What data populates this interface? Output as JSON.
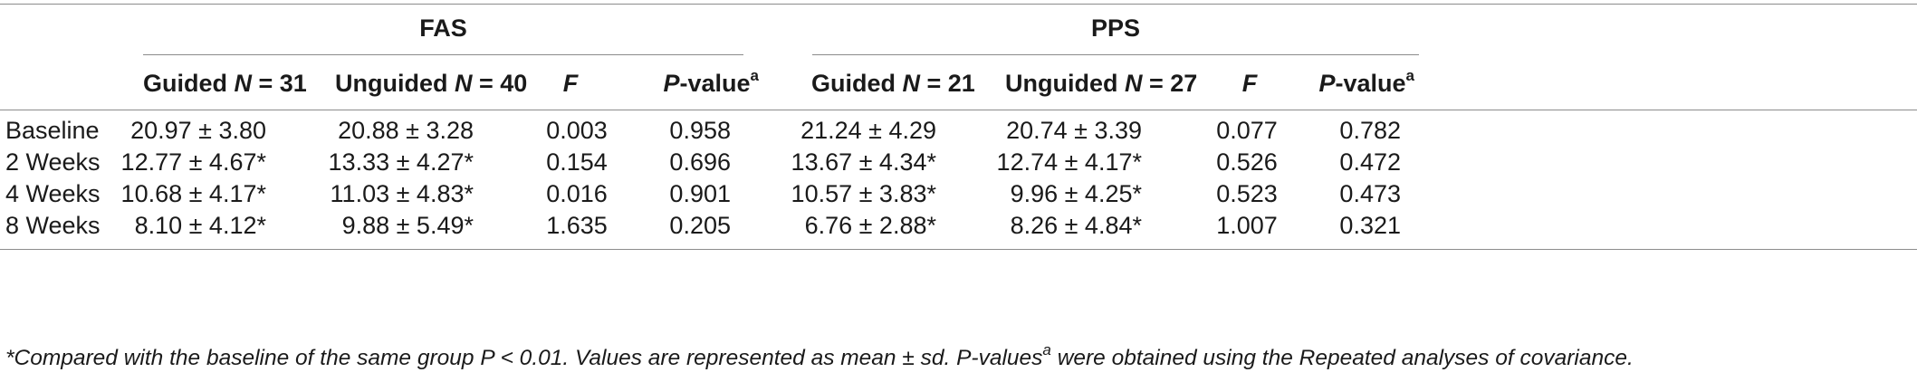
{
  "groups": [
    {
      "label": "FAS"
    },
    {
      "label": "PPS"
    }
  ],
  "columns": [
    {
      "prefix": "Guided ",
      "ital": "N",
      "suffix": " = 31",
      "sup": ""
    },
    {
      "prefix": "Unguided ",
      "ital": "N",
      "suffix": " = 40",
      "sup": ""
    },
    {
      "prefix": "",
      "ital": "F",
      "suffix": "",
      "sup": ""
    },
    {
      "prefix": "",
      "ital": "P",
      "suffix": "-value",
      "sup": "a"
    },
    {
      "prefix": "Guided ",
      "ital": "N",
      "suffix": " = 21",
      "sup": ""
    },
    {
      "prefix": "Unguided ",
      "ital": "N",
      "suffix": " = 27",
      "sup": ""
    },
    {
      "prefix": "",
      "ital": "F",
      "suffix": "",
      "sup": ""
    },
    {
      "prefix": "",
      "ital": "P",
      "suffix": "-value",
      "sup": "a"
    }
  ],
  "rows": [
    {
      "label": "Baseline",
      "cells": [
        "20.97 ± 3.80",
        "20.88 ± 3.28",
        "0.003",
        "0.958",
        "21.24 ± 4.29",
        "20.74 ± 3.39",
        "0.077",
        "0.782"
      ]
    },
    {
      "label": "2 Weeks",
      "cells": [
        "12.77 ± 4.67*",
        "13.33 ± 4.27*",
        "0.154",
        "0.696",
        "13.67 ± 4.34*",
        "12.74 ± 4.17*",
        "0.526",
        "0.472"
      ]
    },
    {
      "label": "4 Weeks",
      "cells": [
        "10.68 ± 4.17*",
        "11.03 ± 4.83*",
        "0.016",
        "0.901",
        "10.57 ± 3.83*",
        "9.96 ± 4.25*",
        "0.523",
        "0.473"
      ]
    },
    {
      "label": "8 Weeks",
      "cells": [
        "8.10 ± 4.12*",
        "9.88 ± 5.49*",
        "1.635",
        "0.205",
        "6.76 ± 2.88*",
        "8.26 ± 4.84*",
        "1.007",
        "0.321"
      ]
    }
  ],
  "footnote": {
    "part1": "*Compared with the baseline of the same group P < 0.01. Values are represented as mean ± sd. P-values",
    "sup": "a",
    "part2": " were obtained using the Repeated analyses of covariance."
  }
}
